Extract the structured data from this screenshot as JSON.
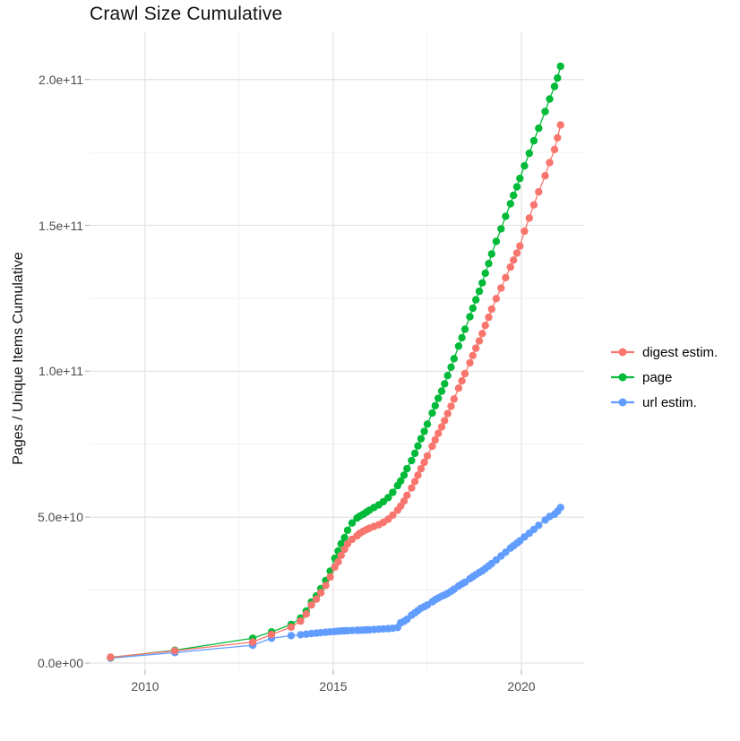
{
  "title": "Crawl Size Cumulative",
  "y_axis_title": "Pages / Unique Items Cumulative",
  "legend": {
    "items": [
      {
        "label": "digest estim.",
        "color": "#F8766D"
      },
      {
        "label": "page",
        "color": "#00BA38"
      },
      {
        "label": "url estim.",
        "color": "#619CFF"
      }
    ]
  },
  "colors": {
    "digest": "#F8766D",
    "page": "#00BA38",
    "url": "#619CFF",
    "grid_major": "#e4e4e4",
    "grid_minor": "#f2f2f2",
    "tick_mark": "#b8b8b8",
    "tick_text": "#4d4d4d",
    "background": "#ffffff"
  },
  "chart_data": {
    "type": "line",
    "title": "Crawl Size Cumulative",
    "xlabel": "",
    "ylabel": "Pages / Unique Items Cumulative",
    "grid": true,
    "legend_position": "right",
    "x_axis": {
      "tick_labels": [
        "2010",
        "2015",
        "2020"
      ],
      "tick_values": [
        2010,
        2015,
        2020
      ],
      "minor_values": [
        2012.5,
        2017.5
      ],
      "range": [
        2008.52,
        2021.67
      ]
    },
    "y_axis": {
      "tick_labels": [
        "0.0e+00",
        "5.0e+10",
        "1.0e+11",
        "1.5e+11",
        "2.0e+11"
      ],
      "tick_values_e9": [
        0,
        50,
        100,
        150,
        200
      ],
      "minor_values_e9": [
        25,
        75,
        125,
        175
      ],
      "range_e9": [
        -2.5,
        216.5
      ]
    },
    "x": [
      2009.08,
      2010.79,
      2012.86,
      2013.36,
      2013.88,
      2014.13,
      2014.28,
      2014.42,
      2014.55,
      2014.67,
      2014.8,
      2014.92,
      2015.04,
      2015.13,
      2015.21,
      2015.3,
      2015.38,
      2015.5,
      2015.63,
      2015.71,
      2015.8,
      2015.88,
      2015.96,
      2016.08,
      2016.21,
      2016.33,
      2016.46,
      2016.58,
      2016.71,
      2016.79,
      2016.88,
      2016.96,
      2017.08,
      2017.17,
      2017.25,
      2017.33,
      2017.42,
      2017.5,
      2017.63,
      2017.71,
      2017.79,
      2017.88,
      2017.96,
      2018.04,
      2018.13,
      2018.21,
      2018.33,
      2018.42,
      2018.5,
      2018.63,
      2018.71,
      2018.79,
      2018.88,
      2018.96,
      2019.04,
      2019.13,
      2019.21,
      2019.33,
      2019.46,
      2019.58,
      2019.71,
      2019.79,
      2019.88,
      2019.96,
      2020.08,
      2020.21,
      2020.33,
      2020.46,
      2020.63,
      2020.75,
      2020.88,
      2020.96,
      2021.04
    ],
    "series": [
      {
        "name": "digest estim.",
        "color": "#F8766D",
        "values_e9": [
          2.0,
          4.2,
          7.2,
          9.8,
          12.3,
          14.4,
          16.8,
          19.9,
          21.9,
          24.1,
          26.6,
          29.5,
          32.9,
          34.7,
          36.9,
          39.0,
          40.9,
          42.4,
          43.6,
          44.5,
          45.2,
          45.7,
          46.2,
          46.8,
          47.4,
          48.2,
          49.3,
          50.7,
          52.4,
          53.8,
          55.5,
          57.5,
          60.0,
          62.2,
          64.4,
          66.6,
          68.8,
          71.0,
          74.3,
          76.5,
          78.7,
          80.9,
          83.1,
          85.5,
          88.0,
          90.5,
          94.2,
          96.7,
          99.2,
          102.9,
          105.4,
          107.9,
          110.4,
          112.9,
          115.7,
          118.5,
          121.3,
          124.9,
          128.5,
          132.1,
          135.7,
          138.1,
          140.5,
          142.9,
          148.0,
          152.5,
          157.0,
          161.5,
          167.0,
          171.5,
          176.0,
          180.0,
          184.4
        ]
      },
      {
        "name": "page",
        "color": "#00BA38",
        "values_e9": [
          1.9,
          4.4,
          8.5,
          10.7,
          13.2,
          15.4,
          17.8,
          20.9,
          23.0,
          25.5,
          28.3,
          31.5,
          35.9,
          38.4,
          40.9,
          43.0,
          45.5,
          48.0,
          49.7,
          50.4,
          51.0,
          51.7,
          52.4,
          53.3,
          54.2,
          55.3,
          56.7,
          58.5,
          60.8,
          62.4,
          64.4,
          66.6,
          69.4,
          71.9,
          74.4,
          76.9,
          79.4,
          81.9,
          85.7,
          88.2,
          90.7,
          93.2,
          95.7,
          98.5,
          101.4,
          104.3,
          108.6,
          111.5,
          114.4,
          118.7,
          121.6,
          124.5,
          127.4,
          130.3,
          133.6,
          136.9,
          140.2,
          144.5,
          148.8,
          153.1,
          157.4,
          160.3,
          163.2,
          166.1,
          170.4,
          174.7,
          179.0,
          183.3,
          189.0,
          193.3,
          197.6,
          200.5,
          204.5
        ]
      },
      {
        "name": "url estim.",
        "color": "#619CFF",
        "values_e9": [
          1.7,
          3.6,
          6.1,
          8.5,
          9.4,
          9.7,
          9.9,
          10.1,
          10.25,
          10.4,
          10.55,
          10.7,
          10.8,
          10.9,
          11.0,
          11.05,
          11.1,
          11.15,
          11.2,
          11.25,
          11.3,
          11.35,
          11.4,
          11.5,
          11.6,
          11.7,
          11.8,
          11.9,
          12.2,
          13.8,
          14.3,
          15.0,
          16.4,
          17.2,
          18.0,
          18.8,
          19.3,
          19.9,
          21.0,
          21.7,
          22.3,
          22.9,
          23.3,
          23.9,
          24.6,
          25.3,
          26.4,
          27.1,
          27.7,
          28.9,
          29.6,
          30.3,
          31.0,
          31.6,
          32.4,
          33.3,
          34.1,
          35.3,
          36.7,
          38.0,
          39.4,
          40.2,
          41.1,
          41.9,
          43.2,
          44.5,
          45.8,
          47.2,
          49.0,
          50.2,
          51.0,
          52.0,
          53.3
        ]
      }
    ]
  }
}
